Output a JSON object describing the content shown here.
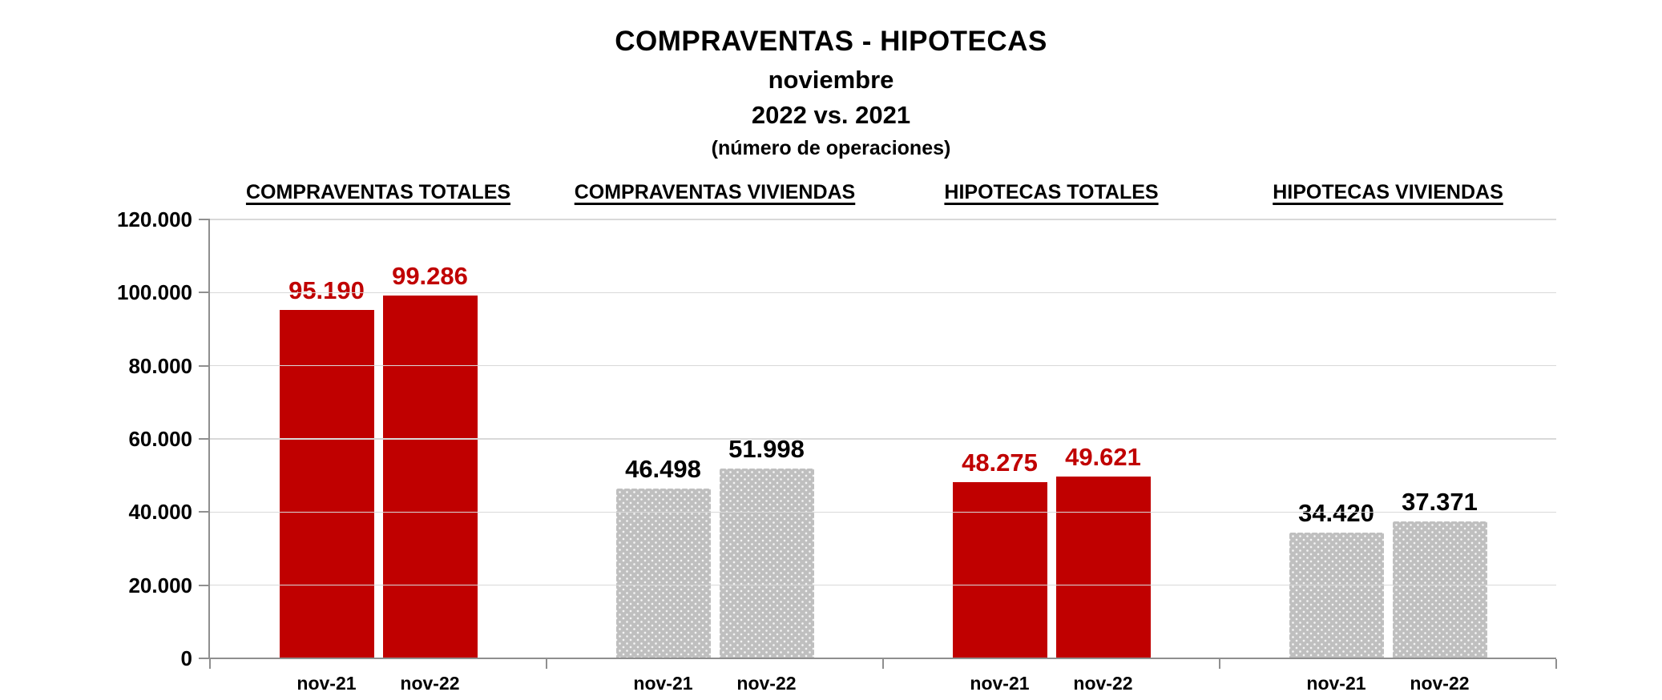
{
  "chart_data": {
    "type": "bar",
    "title": "COMPRAVENTAS - HIPOTECAS",
    "subtitle_lines": [
      "noviembre",
      "2022 vs. 2021"
    ],
    "note": "(número de operaciones)",
    "categories": [
      "nov-21",
      "nov-22"
    ],
    "groups": [
      {
        "label": "COMPRAVENTAS TOTALES",
        "values": [
          95190,
          99286
        ],
        "value_labels": [
          "95.190",
          "99.286"
        ],
        "bar_color": "#C00000",
        "value_label_color": "#C00000",
        "texture": "solid"
      },
      {
        "label": "COMPRAVENTAS VIVIENDAS",
        "values": [
          46498,
          51998
        ],
        "value_labels": [
          "46.498",
          "51.998"
        ],
        "bar_color": "#BFBFBF",
        "value_label_color": "#000000",
        "texture": "dots"
      },
      {
        "label": "HIPOTECAS TOTALES",
        "values": [
          48275,
          49621
        ],
        "value_labels": [
          "48.275",
          "49.621"
        ],
        "bar_color": "#C00000",
        "value_label_color": "#C00000",
        "texture": "solid"
      },
      {
        "label": "HIPOTECAS VIVIENDAS",
        "values": [
          34420,
          37371
        ],
        "value_labels": [
          "34.420",
          "37.371"
        ],
        "bar_color": "#BFBFBF",
        "value_label_color": "#000000",
        "texture": "dots"
      }
    ],
    "y_axis": {
      "min": 0,
      "max": 120000,
      "step": 20000,
      "tick_labels": [
        "0",
        "20.000",
        "40.000",
        "60.000",
        "80.000",
        "100.000",
        "120.000"
      ]
    },
    "grid": true,
    "legend": "none",
    "colors": {
      "bar_red": "#C00000",
      "bar_gray": "#BFBFBF",
      "gridline": "#D9D9D9",
      "axis": "#8F8F8F",
      "text": "#000000"
    }
  }
}
